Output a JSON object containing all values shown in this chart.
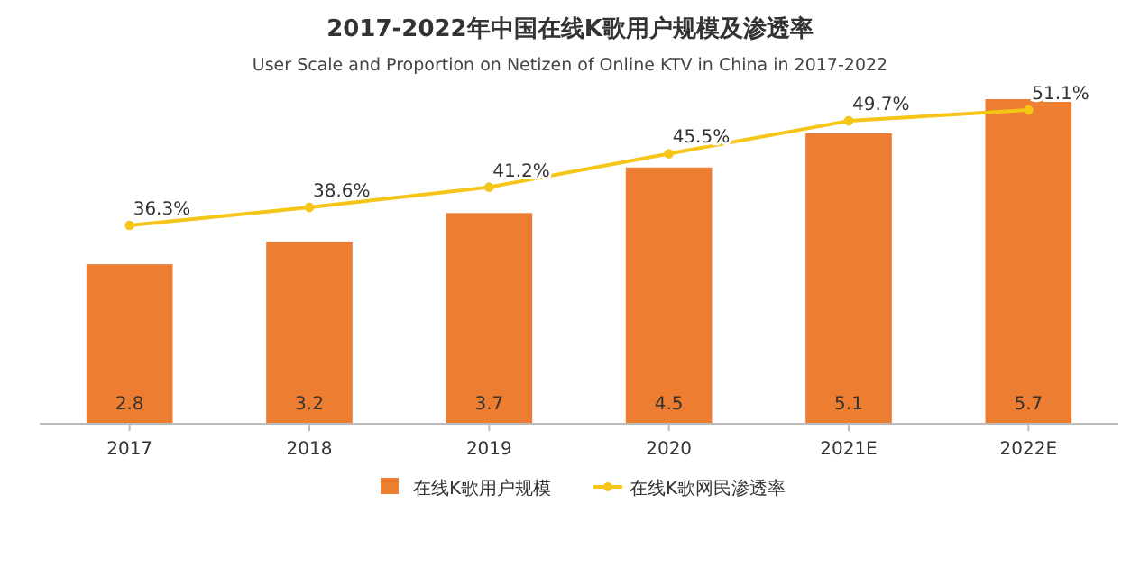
{
  "chart_data": {
    "type": "bar",
    "title": "2017-2022年中国在线K歌用户规模及渗透率",
    "subtitle": "User Scale and Proportion on Netizen of Online KTV in China in 2017-2022",
    "categories": [
      "2017",
      "2018",
      "2019",
      "2020",
      "2021E",
      "2022E"
    ],
    "series": [
      {
        "name": "在线K歌用户规模",
        "color": "#ed7d31",
        "values": [
          2.8,
          3.2,
          3.7,
          4.5,
          5.1,
          5.7
        ]
      },
      {
        "name": "在线K歌网民渗透率",
        "type": "line",
        "axis": "y2",
        "color": "#f5c518",
        "value_labels": [
          "36.3%",
          "38.6%",
          "41.2%",
          "45.5%",
          "49.7%",
          "51.1%"
        ],
        "values": [
          36.3,
          38.6,
          41.2,
          45.5,
          49.7,
          51.1
        ]
      }
    ],
    "tick_labels": "x",
    "data_labels": true,
    "legend": "bottom",
    "marker": "circle"
  }
}
